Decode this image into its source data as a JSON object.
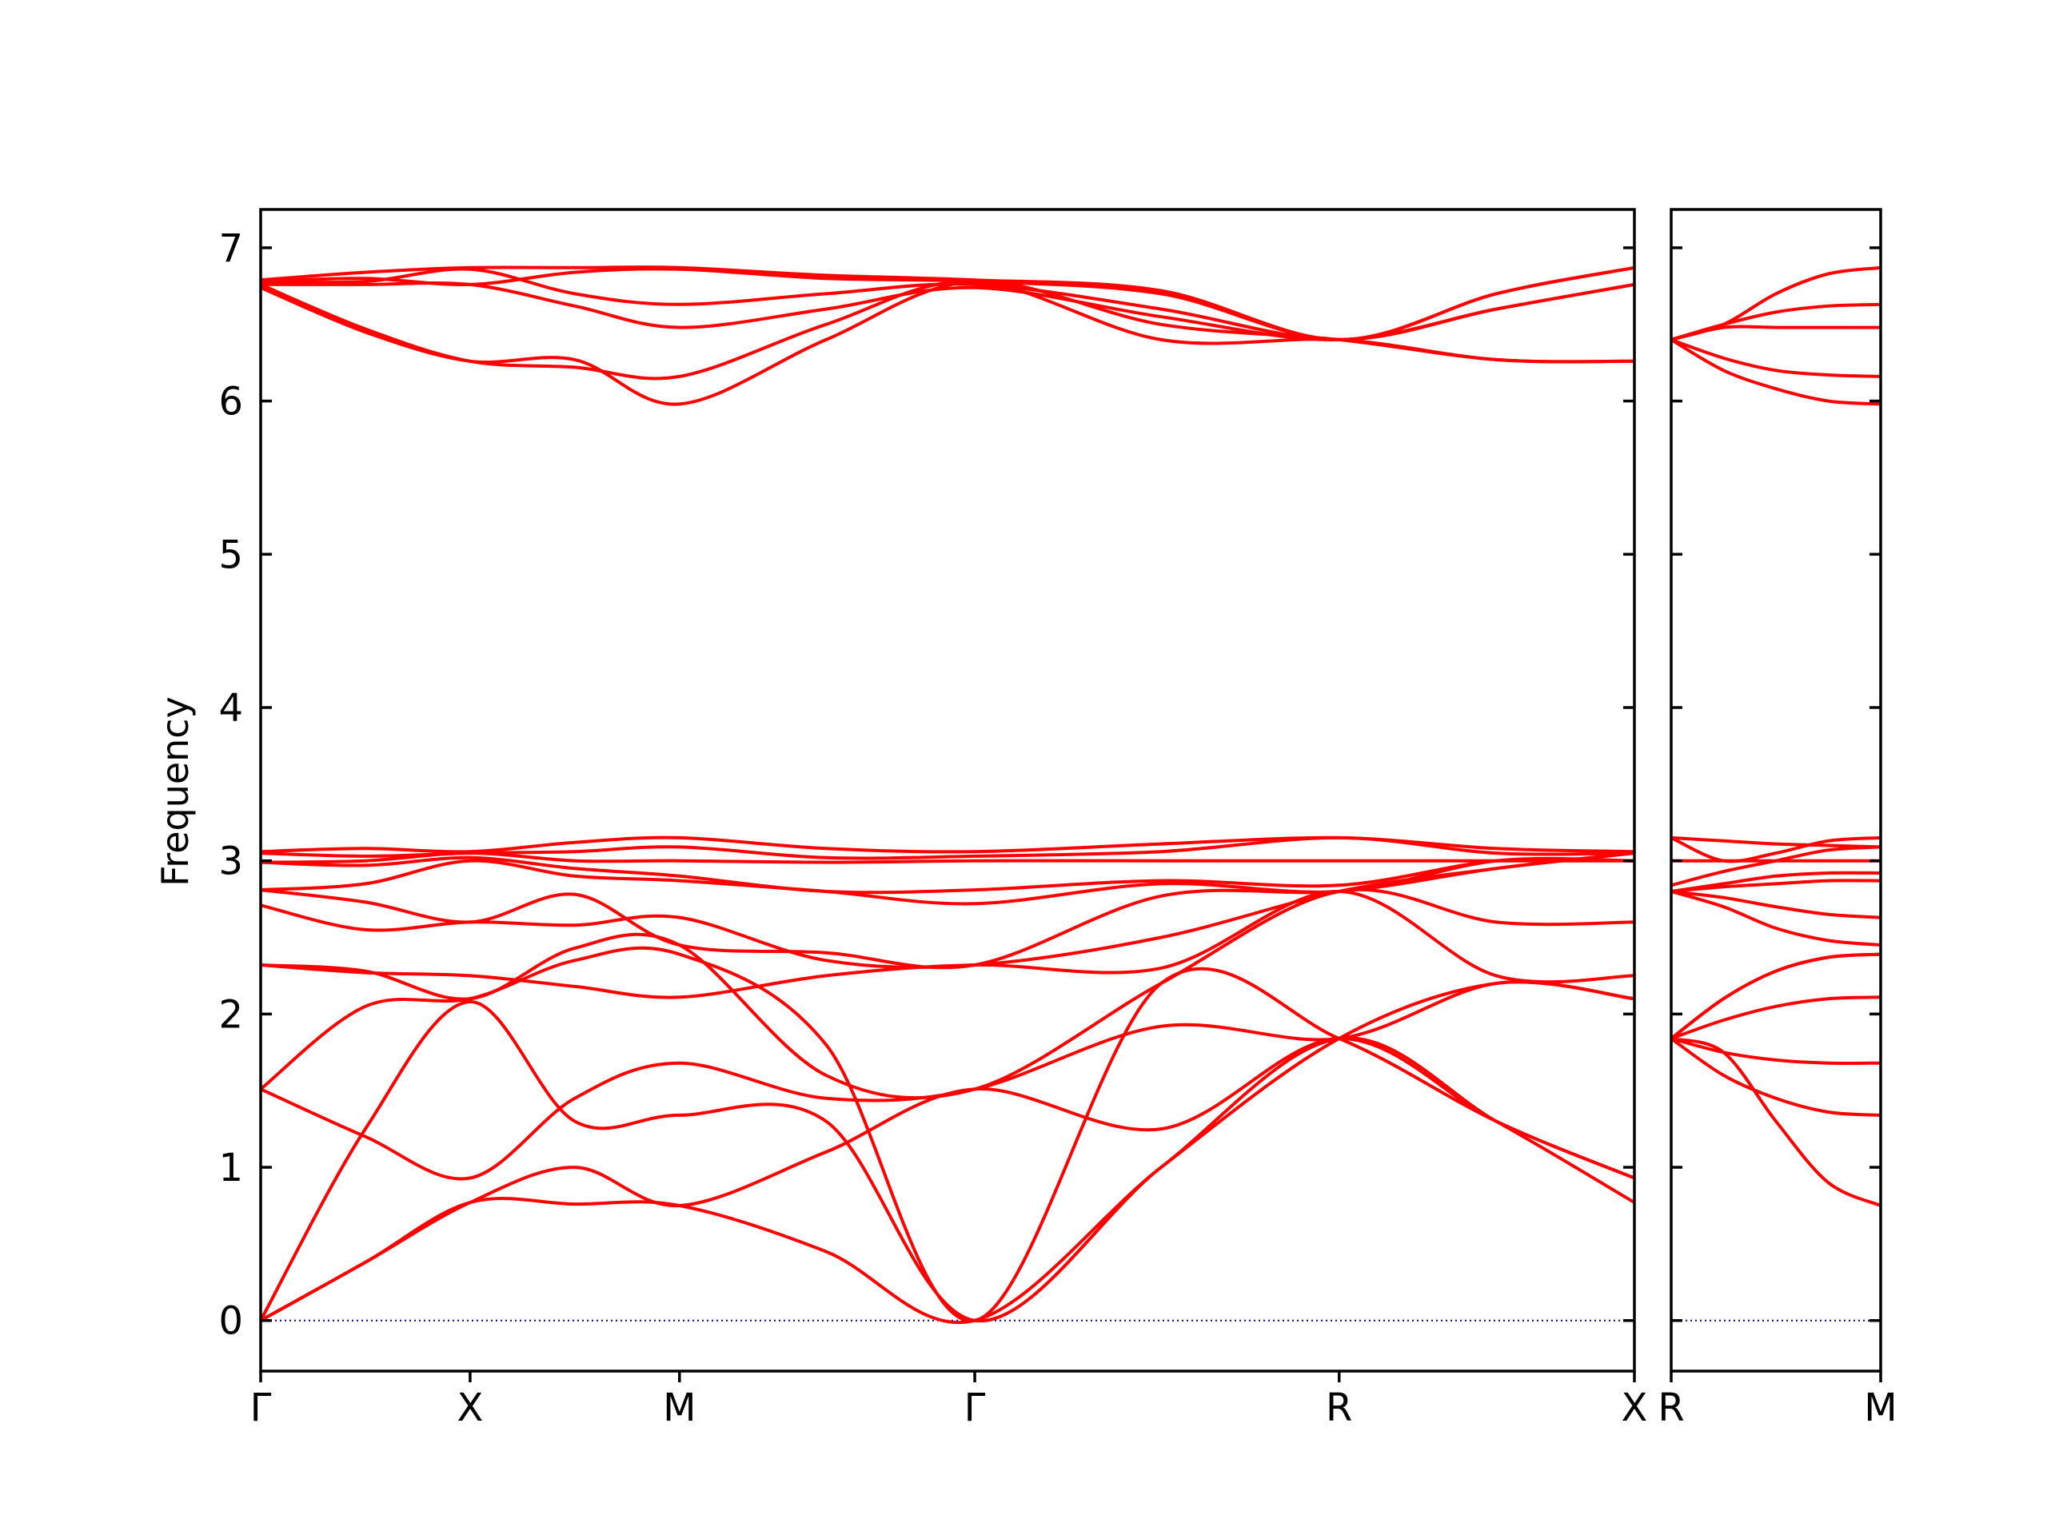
{
  "chart_data": {
    "type": "line",
    "title": "",
    "ylabel": "Frequency",
    "xlabel": "",
    "ylim": [
      -0.33,
      7.25
    ],
    "yticks": [
      0,
      1,
      2,
      3,
      4,
      5,
      6,
      7
    ],
    "band_color": "#ff0000",
    "zero_line_color": "#00008b",
    "grid": false,
    "panels": [
      {
        "xlim": [
          0,
          4.83
        ],
        "ticks": [
          {
            "label": "Γ",
            "x": 0
          },
          {
            "label": "X",
            "x": 1.0
          },
          {
            "label": "M",
            "x": 2.0
          },
          {
            "label": "Γ",
            "x": 3.41
          },
          {
            "label": "R",
            "x": 5.15
          },
          {
            "label": "X",
            "x": 6.56
          }
        ],
        "bands": [
          {
            "x": [
              0,
              0.5,
              1.0,
              1.5,
              2.0,
              2.7,
              3.41,
              4.3,
              5.15,
              5.9,
              6.56
            ],
            "y": [
              0,
              0.38,
              0.77,
              0.76,
              0.75,
              0.45,
              0,
              1.0,
              1.84,
              1.3,
              0.77
            ]
          },
          {
            "x": [
              0,
              0.5,
              1.0,
              1.5,
              2.0,
              2.7,
              3.41,
              4.3,
              5.15,
              5.9,
              6.56
            ],
            "y": [
              0,
              0.38,
              0.77,
              1.0,
              0.75,
              1.1,
              1.51,
              1.25,
              1.84,
              1.3,
              0.93
            ]
          },
          {
            "x": [
              0,
              0.5,
              1.0,
              1.5,
              2.0,
              2.7,
              3.41,
              4.3,
              5.15,
              5.9,
              6.56
            ],
            "y": [
              0,
              1.25,
              2.08,
              1.3,
              1.34,
              1.3,
              0,
              1.0,
              1.84,
              2.2,
              2.1
            ]
          },
          {
            "x": [
              0,
              0.5,
              1.0,
              1.5,
              2.0,
              2.7,
              3.41,
              4.3,
              5.15,
              5.9,
              6.56
            ],
            "y": [
              1.51,
              1.2,
              0.93,
              1.45,
              1.68,
              1.45,
              1.51,
              1.92,
              1.84,
              2.2,
              2.1
            ]
          },
          {
            "x": [
              0,
              0.5,
              1.0,
              1.5,
              2.0,
              2.7,
              3.41,
              4.3,
              5.15,
              5.9,
              6.56
            ],
            "y": [
              1.51,
              2.05,
              2.1,
              2.35,
              2.39,
              1.8,
              0,
              2.2,
              1.84,
              1.3,
              0.93
            ]
          },
          {
            "x": [
              0,
              0.5,
              1.0,
              1.5,
              2.0,
              2.7,
              3.41,
              4.3,
              5.15,
              5.9,
              6.56
            ],
            "y": [
              2.32,
              2.27,
              2.25,
              2.18,
              2.11,
              2.25,
              2.32,
              2.3,
              2.8,
              2.25,
              2.25
            ]
          },
          {
            "x": [
              0,
              0.5,
              1.0,
              1.5,
              2.0,
              2.7,
              3.41,
              4.3,
              5.15,
              5.9,
              6.56
            ],
            "y": [
              2.32,
              2.28,
              2.1,
              2.43,
              2.45,
              1.6,
              1.51,
              2.2,
              2.8,
              2.6,
              2.6
            ]
          },
          {
            "x": [
              0,
              0.5,
              1.0,
              1.5,
              2.0,
              2.7,
              3.41,
              4.3,
              5.15,
              5.9,
              6.56
            ],
            "y": [
              2.71,
              2.55,
              2.6,
              2.58,
              2.63,
              2.35,
              2.32,
              2.5,
              2.8,
              2.95,
              3.05
            ]
          },
          {
            "x": [
              0,
              0.5,
              1.0,
              1.5,
              2.0,
              2.7,
              3.41,
              4.3,
              5.15,
              5.9,
              6.56
            ],
            "y": [
              2.81,
              2.73,
              2.6,
              2.78,
              2.45,
              2.4,
              2.32,
              2.77,
              2.8,
              2.95,
              3.05
            ]
          },
          {
            "x": [
              0,
              0.5,
              1.0,
              1.5,
              2.0,
              2.7,
              3.41,
              4.3,
              5.15,
              5.9,
              6.56
            ],
            "y": [
              2.81,
              2.85,
              3.0,
              2.9,
              2.87,
              2.8,
              2.72,
              2.85,
              2.8,
              3.0,
              3.0
            ]
          },
          {
            "x": [
              0,
              0.5,
              1.0,
              1.5,
              2.0,
              2.7,
              3.41,
              4.3,
              5.15,
              5.9,
              6.56
            ],
            "y": [
              2.99,
              2.97,
              3.02,
              2.95,
              2.9,
              2.8,
              2.81,
              2.87,
              2.84,
              3.0,
              3.0
            ]
          },
          {
            "x": [
              0,
              0.5,
              1.0,
              1.5,
              2.0,
              2.7,
              3.41,
              4.3,
              5.15,
              5.9,
              6.56
            ],
            "y": [
              2.99,
              3.0,
              3.05,
              3.0,
              3.0,
              2.99,
              3.0,
              3.0,
              3.0,
              3.0,
              3.0
            ]
          },
          {
            "x": [
              0,
              0.5,
              1.0,
              1.5,
              2.0,
              2.7,
              3.41,
              4.3,
              5.15,
              5.9,
              6.56
            ],
            "y": [
              3.05,
              3.03,
              3.05,
              3.06,
              3.09,
              3.02,
              3.03,
              3.06,
              3.15,
              3.05,
              3.05
            ]
          },
          {
            "x": [
              0,
              0.5,
              1.0,
              1.5,
              2.0,
              2.7,
              3.41,
              4.3,
              5.15,
              5.9,
              6.56
            ],
            "y": [
              3.06,
              3.08,
              3.06,
              3.12,
              3.15,
              3.08,
              3.06,
              3.11,
              3.15,
              3.08,
              3.06
            ]
          },
          {
            "x": [
              0,
              0.5,
              1.0,
              1.5,
              2.0,
              2.7,
              3.41,
              4.3,
              5.15,
              5.9,
              6.56
            ],
            "y": [
              6.74,
              6.45,
              6.26,
              6.27,
              5.98,
              6.4,
              6.78,
              6.5,
              6.4,
              6.27,
              6.26
            ]
          },
          {
            "x": [
              0,
              0.5,
              1.0,
              1.5,
              2.0,
              2.7,
              3.41,
              4.3,
              5.15,
              5.9,
              6.56
            ],
            "y": [
              6.76,
              6.47,
              6.26,
              6.22,
              6.16,
              6.5,
              6.78,
              6.4,
              6.4,
              6.27,
              6.26
            ]
          },
          {
            "x": [
              0,
              0.5,
              1.0,
              1.5,
              2.0,
              2.7,
              3.41,
              4.3,
              5.15,
              5.9,
              6.56
            ],
            "y": [
              6.76,
              6.76,
              6.76,
              6.62,
              6.48,
              6.6,
              6.74,
              6.55,
              6.4,
              6.6,
              6.76
            ]
          },
          {
            "x": [
              0,
              0.5,
              1.0,
              1.5,
              2.0,
              2.7,
              3.41,
              4.3,
              5.15,
              5.9,
              6.56
            ],
            "y": [
              6.78,
              6.78,
              6.86,
              6.7,
              6.63,
              6.7,
              6.76,
              6.6,
              6.4,
              6.6,
              6.76
            ]
          },
          {
            "x": [
              0,
              0.5,
              1.0,
              1.5,
              2.0,
              2.7,
              3.41,
              4.3,
              5.15,
              5.9,
              6.56
            ],
            "y": [
              6.78,
              6.8,
              6.76,
              6.84,
              6.86,
              6.8,
              6.78,
              6.7,
              6.4,
              6.7,
              6.87
            ]
          },
          {
            "x": [
              0,
              0.5,
              1.0,
              1.5,
              2.0,
              2.7,
              3.41,
              4.3,
              5.15,
              5.9,
              6.56
            ],
            "y": [
              6.79,
              6.84,
              6.87,
              6.87,
              6.87,
              6.82,
              6.79,
              6.72,
              6.4,
              6.7,
              6.87
            ]
          }
        ]
      },
      {
        "xlim": [
          0,
          1.0
        ],
        "ticks": [
          {
            "label": "R",
            "x": 0
          },
          {
            "label": "M",
            "x": 1.0
          }
        ],
        "bands": [
          {
            "x": [
              0,
              0.25,
              0.5,
              0.75,
              1.0
            ],
            "y": [
              1.84,
              1.75,
              1.3,
              0.9,
              0.75
            ]
          },
          {
            "x": [
              0,
              0.25,
              0.5,
              0.75,
              1.0
            ],
            "y": [
              1.84,
              1.6,
              1.45,
              1.36,
              1.34
            ]
          },
          {
            "x": [
              0,
              0.25,
              0.5,
              0.75,
              1.0
            ],
            "y": [
              1.84,
              1.75,
              1.7,
              1.68,
              1.68
            ]
          },
          {
            "x": [
              0,
              0.25,
              0.5,
              0.75,
              1.0
            ],
            "y": [
              1.84,
              1.96,
              2.05,
              2.1,
              2.11
            ]
          },
          {
            "x": [
              0,
              0.25,
              0.5,
              0.75,
              1.0
            ],
            "y": [
              1.84,
              2.1,
              2.28,
              2.37,
              2.39
            ]
          },
          {
            "x": [
              0,
              0.25,
              0.5,
              0.75,
              1.0
            ],
            "y": [
              1.84,
              2.1,
              2.28,
              2.37,
              2.39
            ]
          },
          {
            "x": [
              0,
              0.25,
              0.5,
              0.75,
              1.0
            ],
            "y": [
              2.8,
              2.7,
              2.56,
              2.48,
              2.45
            ]
          },
          {
            "x": [
              0,
              0.25,
              0.5,
              0.75,
              1.0
            ],
            "y": [
              2.8,
              2.76,
              2.7,
              2.65,
              2.63
            ]
          },
          {
            "x": [
              0,
              0.25,
              0.5,
              0.75,
              1.0
            ],
            "y": [
              2.8,
              2.83,
              2.85,
              2.87,
              2.87
            ]
          },
          {
            "x": [
              0,
              0.25,
              0.5,
              0.75,
              1.0
            ],
            "y": [
              2.8,
              2.85,
              2.9,
              2.92,
              2.92
            ]
          },
          {
            "x": [
              0,
              0.25,
              0.5,
              0.75,
              1.0
            ],
            "y": [
              2.84,
              2.93,
              3.0,
              3.07,
              3.09
            ]
          },
          {
            "x": [
              0,
              0.25,
              0.5,
              0.75,
              1.0
            ],
            "y": [
              3.0,
              3.0,
              3.0,
              3.0,
              3.0
            ]
          },
          {
            "x": [
              0,
              0.25,
              0.5,
              0.75,
              1.0
            ],
            "y": [
              3.15,
              3.13,
              3.11,
              3.1,
              3.09
            ]
          },
          {
            "x": [
              0,
              0.25,
              0.5,
              0.75,
              1.0
            ],
            "y": [
              3.15,
              3.0,
              3.05,
              3.13,
              3.15
            ]
          },
          {
            "x": [
              0,
              0.25,
              0.5,
              0.75,
              1.0
            ],
            "y": [
              6.4,
              6.2,
              6.08,
              6.0,
              5.98
            ]
          },
          {
            "x": [
              0,
              0.25,
              0.5,
              0.75,
              1.0
            ],
            "y": [
              6.4,
              6.28,
              6.2,
              6.17,
              6.16
            ]
          },
          {
            "x": [
              0,
              0.25,
              0.5,
              0.75,
              1.0
            ],
            "y": [
              6.4,
              6.48,
              6.48,
              6.48,
              6.48
            ]
          },
          {
            "x": [
              0,
              0.25,
              0.5,
              0.75,
              1.0
            ],
            "y": [
              6.4,
              6.5,
              6.58,
              6.62,
              6.63
            ]
          },
          {
            "x": [
              0,
              0.25,
              0.5,
              0.75,
              1.0
            ],
            "y": [
              6.4,
              6.5,
              6.7,
              6.83,
              6.87
            ]
          }
        ]
      }
    ]
  }
}
